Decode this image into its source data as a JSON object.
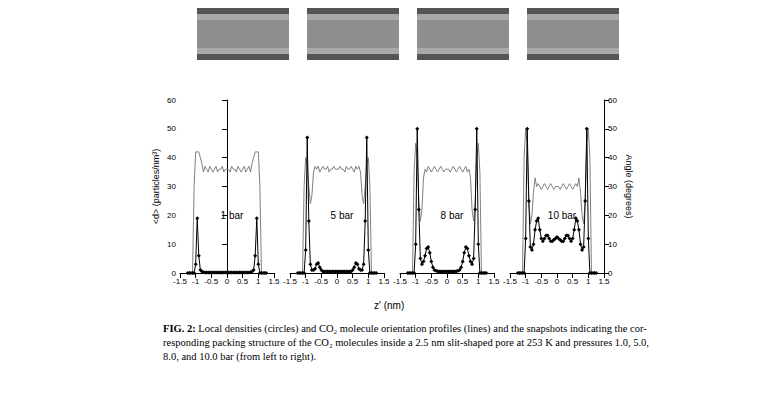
{
  "figure": {
    "xlabel": "z' (nm)",
    "caption_label": "FIG. 2:",
    "caption_lines": [
      "Local densities (circles) and CO₂ molecule orientation profiles (lines) and the snapshots indicating the cor-",
      "responding packing structure of the CO₂ molecules inside a 2.5 nm slit-shaped pore at 253 K and pressures 1.0, 5.0,",
      "8.0, and 10.0 bar (from left to right)."
    ]
  },
  "chart_data": [
    {
      "type": "line",
      "title": "1 bar",
      "ylabel": "<d> (particles/nm³)",
      "grid": false,
      "xlim": [
        -1.5,
        1.5
      ],
      "xticks": [
        -1.5,
        -1,
        -0.5,
        0,
        0.5,
        1,
        1.5
      ],
      "ylim": [
        0,
        60
      ],
      "yticks": [
        0,
        10,
        20,
        30,
        40,
        50,
        60
      ],
      "y2lim": [
        0,
        60
      ],
      "x": [
        -1.25,
        -1.2,
        -1.15,
        -1.1,
        -1.05,
        -1,
        -0.95,
        -0.9,
        -0.85,
        -0.8,
        -0.75,
        -0.7,
        -0.65,
        -0.6,
        -0.55,
        -0.5,
        -0.45,
        -0.4,
        -0.35,
        -0.3,
        -0.25,
        -0.2,
        -0.15,
        -0.1,
        -0.05,
        0,
        0.05,
        0.1,
        0.15,
        0.2,
        0.25,
        0.3,
        0.35,
        0.4,
        0.45,
        0.5,
        0.55,
        0.6,
        0.65,
        0.7,
        0.75,
        0.8,
        0.85,
        0.9,
        0.95,
        1,
        1.05,
        1.1,
        1.15,
        1.2,
        1.25
      ],
      "series": [
        {
          "type": "line",
          "color": "#000000",
          "marker": "diamond",
          "line_style": "solid",
          "values": [
            0,
            0,
            0,
            0,
            0,
            3,
            19,
            6,
            1,
            0.5,
            0.3,
            0.2,
            0.2,
            0.2,
            0.2,
            0.2,
            0.2,
            0.2,
            0.2,
            0.2,
            0.2,
            0.2,
            0.2,
            0.2,
            0.2,
            0.2,
            0.2,
            0.2,
            0.2,
            0.2,
            0.2,
            0.2,
            0.2,
            0.2,
            0.2,
            0.2,
            0.2,
            0.2,
            0.2,
            0.2,
            0.3,
            0.5,
            1,
            6,
            19,
            3,
            0,
            0,
            0,
            0,
            0
          ]
        },
        {
          "type": "line",
          "color": "#808080",
          "marker": "none",
          "line_style": "solid",
          "axis": "y2",
          "values": [
            0,
            0,
            0,
            0,
            30,
            42,
            42,
            42,
            40,
            38,
            35,
            37,
            36,
            35,
            37,
            36,
            35,
            36,
            37,
            35,
            36,
            36,
            37,
            35,
            36,
            36,
            36,
            35,
            37,
            36,
            36,
            35,
            37,
            36,
            35,
            36,
            37,
            35,
            36,
            37,
            35,
            38,
            40,
            42,
            42,
            42,
            30,
            0,
            0,
            0,
            0
          ]
        }
      ]
    },
    {
      "type": "line",
      "title": "5 bar",
      "grid": false,
      "xlim": [
        -1.5,
        1.5
      ],
      "xticks": [
        -1.5,
        -1,
        -0.5,
        0,
        0.5,
        1,
        1.5
      ],
      "ylim": [
        0,
        60
      ],
      "y2lim": [
        0,
        60
      ],
      "x": [
        -1.25,
        -1.2,
        -1.15,
        -1.1,
        -1.05,
        -1,
        -0.95,
        -0.9,
        -0.85,
        -0.8,
        -0.75,
        -0.7,
        -0.65,
        -0.6,
        -0.55,
        -0.5,
        -0.45,
        -0.4,
        -0.35,
        -0.3,
        -0.25,
        -0.2,
        -0.15,
        -0.1,
        -0.05,
        0,
        0.05,
        0.1,
        0.15,
        0.2,
        0.25,
        0.3,
        0.35,
        0.4,
        0.45,
        0.5,
        0.55,
        0.6,
        0.65,
        0.7,
        0.75,
        0.8,
        0.85,
        0.9,
        0.95,
        1,
        1.05,
        1.1,
        1.15,
        1.2,
        1.25
      ],
      "series": [
        {
          "type": "line",
          "color": "#000000",
          "marker": "diamond",
          "line_style": "solid",
          "values": [
            0,
            0,
            0,
            0,
            0,
            8,
            47,
            18,
            3,
            1,
            1,
            1.5,
            3,
            3.5,
            2,
            1,
            0.5,
            0.5,
            0.5,
            0.5,
            0.5,
            0.5,
            0.5,
            0.5,
            0.5,
            0.5,
            0.5,
            0.5,
            0.5,
            0.5,
            0.5,
            0.5,
            0.5,
            0.5,
            0.5,
            1,
            2,
            3.5,
            3,
            1.5,
            1,
            1,
            3,
            18,
            47,
            8,
            0,
            0,
            0,
            0,
            0
          ]
        },
        {
          "type": "line",
          "color": "#808080",
          "marker": "none",
          "line_style": "solid",
          "axis": "y2",
          "values": [
            0,
            0,
            0,
            0,
            30,
            40,
            38,
            30,
            24,
            27,
            35,
            37,
            36,
            37,
            35,
            36,
            37,
            36,
            36,
            37,
            35,
            36,
            36,
            37,
            36,
            36,
            36,
            37,
            36,
            36,
            35,
            37,
            36,
            36,
            37,
            36,
            35,
            37,
            36,
            37,
            35,
            27,
            24,
            30,
            38,
            40,
            30,
            0,
            0,
            0,
            0
          ]
        }
      ]
    },
    {
      "type": "line",
      "title": "8 bar",
      "grid": false,
      "xlim": [
        -1.5,
        1.5
      ],
      "xticks": [
        -1.5,
        -1,
        -0.5,
        0,
        0.5,
        1,
        1.5
      ],
      "ylim": [
        0,
        60
      ],
      "y2lim": [
        0,
        60
      ],
      "x": [
        -1.25,
        -1.2,
        -1.15,
        -1.1,
        -1.05,
        -1,
        -0.95,
        -0.9,
        -0.85,
        -0.8,
        -0.75,
        -0.7,
        -0.65,
        -0.6,
        -0.55,
        -0.5,
        -0.45,
        -0.4,
        -0.35,
        -0.3,
        -0.25,
        -0.2,
        -0.15,
        -0.1,
        -0.05,
        0,
        0.05,
        0.1,
        0.15,
        0.2,
        0.25,
        0.3,
        0.35,
        0.4,
        0.45,
        0.5,
        0.55,
        0.6,
        0.65,
        0.7,
        0.75,
        0.8,
        0.85,
        0.9,
        0.95,
        1,
        1.05,
        1.1,
        1.15,
        1.2,
        1.25
      ],
      "series": [
        {
          "type": "line",
          "color": "#000000",
          "marker": "diamond",
          "line_style": "solid",
          "values": [
            0,
            0,
            0,
            0,
            0,
            10,
            50,
            22,
            5,
            3,
            4,
            6,
            8.5,
            9,
            7,
            4,
            2,
            1,
            0.8,
            0.6,
            0.5,
            0.5,
            0.5,
            0.5,
            0.5,
            0.5,
            0.5,
            0.5,
            0.5,
            0.5,
            0.5,
            0.6,
            0.8,
            1,
            2,
            4,
            7,
            9,
            8.5,
            6,
            4,
            3,
            5,
            22,
            50,
            10,
            0,
            0,
            0,
            0,
            0
          ]
        },
        {
          "type": "line",
          "color": "#808080",
          "marker": "none",
          "line_style": "solid",
          "axis": "y2",
          "values": [
            0,
            0,
            0,
            0,
            35,
            45,
            40,
            25,
            18,
            22,
            33,
            36,
            35,
            37,
            36,
            35,
            36,
            37,
            36,
            35,
            36,
            37,
            36,
            35,
            36,
            36,
            36,
            35,
            36,
            37,
            36,
            35,
            36,
            37,
            36,
            35,
            36,
            37,
            35,
            36,
            33,
            22,
            18,
            25,
            40,
            45,
            35,
            0,
            0,
            0,
            0
          ]
        }
      ]
    },
    {
      "type": "line",
      "title": "10 bar",
      "y2label": "Angle (degrees)",
      "grid": false,
      "xlim": [
        -1.5,
        1.5
      ],
      "xticks": [
        -1.5,
        -1,
        -0.5,
        0,
        0.5,
        1,
        1.5
      ],
      "ylim": [
        0,
        60
      ],
      "y2lim": [
        0,
        60
      ],
      "y2ticks": [
        0,
        10,
        20,
        30,
        40,
        50,
        60
      ],
      "x": [
        -1.25,
        -1.2,
        -1.15,
        -1.1,
        -1.05,
        -1,
        -0.95,
        -0.9,
        -0.85,
        -0.8,
        -0.75,
        -0.7,
        -0.65,
        -0.6,
        -0.55,
        -0.5,
        -0.45,
        -0.4,
        -0.35,
        -0.3,
        -0.25,
        -0.2,
        -0.15,
        -0.1,
        -0.05,
        0,
        0.05,
        0.1,
        0.15,
        0.2,
        0.25,
        0.3,
        0.35,
        0.4,
        0.45,
        0.5,
        0.55,
        0.6,
        0.65,
        0.7,
        0.75,
        0.8,
        0.85,
        0.9,
        0.95,
        1,
        1.05,
        1.1,
        1.15,
        1.2,
        1.25
      ],
      "series": [
        {
          "type": "line",
          "color": "#000000",
          "marker": "diamond",
          "line_style": "solid",
          "values": [
            0,
            0,
            0,
            0,
            0,
            12,
            50,
            25,
            9,
            8,
            10,
            15,
            18,
            19,
            15,
            12,
            11,
            12,
            13,
            13,
            12,
            11,
            11,
            11.5,
            12,
            12.5,
            12,
            11.5,
            11,
            11,
            12,
            13,
            13,
            12,
            11,
            12,
            15,
            19,
            18,
            15,
            10,
            8,
            9,
            25,
            50,
            12,
            0,
            0,
            0,
            0,
            0
          ]
        },
        {
          "type": "line",
          "color": "#808080",
          "marker": "none",
          "line_style": "solid",
          "axis": "y2",
          "values": [
            0,
            0,
            0,
            0,
            40,
            50,
            45,
            25,
            17,
            20,
            28,
            33,
            30,
            31,
            30,
            29,
            30,
            31,
            30,
            29,
            30,
            31,
            30,
            29,
            30,
            30,
            30,
            29,
            30,
            31,
            30,
            29,
            30,
            31,
            30,
            29,
            30,
            31,
            30,
            33,
            28,
            20,
            17,
            25,
            45,
            50,
            40,
            0,
            0,
            0,
            0
          ]
        }
      ]
    }
  ]
}
